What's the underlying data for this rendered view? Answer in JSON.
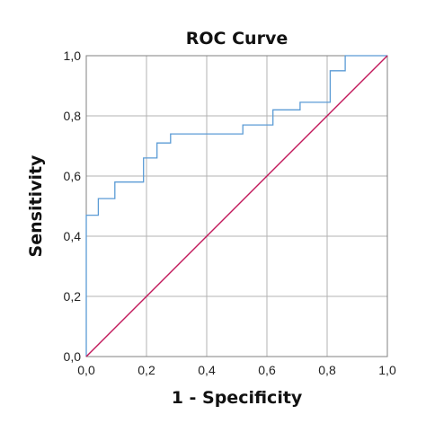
{
  "chart_data": {
    "type": "line",
    "title": "ROC Curve",
    "xlabel": "1 - Specificity",
    "ylabel": "Sensitivity",
    "xlim": [
      0,
      1
    ],
    "ylim": [
      0,
      1
    ],
    "grid": true,
    "legend": "none",
    "x_ticks": [
      "0,0",
      "0,2",
      "0,4",
      "0,6",
      "0,8",
      "1,0"
    ],
    "y_ticks": [
      "0,0",
      "0,2",
      "0,4",
      "0,6",
      "0,8",
      "1,0"
    ],
    "series": [
      {
        "color": "#5b9bd5",
        "step": true,
        "x": [
          0.0,
          0.0,
          0.04,
          0.04,
          0.095,
          0.095,
          0.19,
          0.19,
          0.235,
          0.235,
          0.28,
          0.28,
          0.52,
          0.52,
          0.62,
          0.62,
          0.71,
          0.71,
          0.81,
          0.81,
          0.86,
          0.86,
          1.0
        ],
        "y": [
          0.0,
          0.47,
          0.47,
          0.525,
          0.525,
          0.58,
          0.58,
          0.66,
          0.66,
          0.71,
          0.71,
          0.74,
          0.74,
          0.77,
          0.77,
          0.82,
          0.82,
          0.845,
          0.845,
          0.95,
          0.95,
          1.0,
          1.0
        ]
      },
      {
        "color": "#c2185b",
        "reference": true,
        "x": [
          0.0,
          1.0
        ],
        "y": [
          0.0,
          1.0
        ]
      }
    ]
  }
}
